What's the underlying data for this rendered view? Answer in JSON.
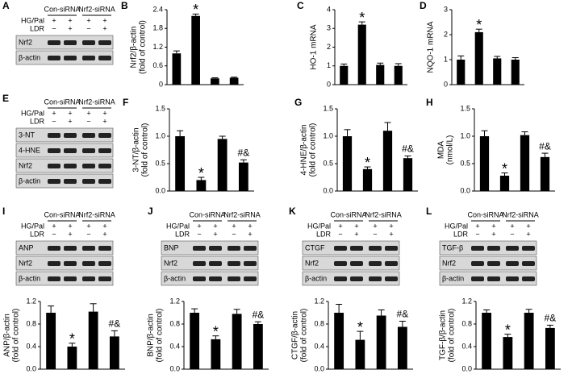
{
  "chart_data": [
    {
      "type": "bar",
      "panel": "B",
      "ylabel": [
        "Nrf2/β-actin",
        "(fold of control)"
      ],
      "values": [
        1.0,
        2.2,
        0.2,
        0.22
      ],
      "errors": [
        0.08,
        0.06,
        0.02,
        0.02
      ],
      "annotations": [
        null,
        "*",
        null,
        null
      ],
      "color": "#000000",
      "ylim": [
        0,
        2.4
      ],
      "yticks": [
        0,
        0.6,
        1.2,
        1.8,
        2.4
      ]
    },
    {
      "type": "bar",
      "panel": "C",
      "ylabel": [
        "HO-1 mRNA"
      ],
      "values": [
        1.0,
        3.2,
        1.05,
        1.0
      ],
      "errors": [
        0.1,
        0.15,
        0.1,
        0.12
      ],
      "annotations": [
        null,
        "*",
        null,
        null
      ],
      "color": "#000000",
      "ylim": [
        0,
        4
      ],
      "yticks": [
        0,
        1,
        2,
        3,
        4
      ]
    },
    {
      "type": "bar",
      "panel": "D",
      "ylabel": [
        "NQO-1 mRNA"
      ],
      "values": [
        1.0,
        2.1,
        1.05,
        1.0
      ],
      "errors": [
        0.15,
        0.12,
        0.08,
        0.08
      ],
      "annotations": [
        null,
        "*",
        null,
        null
      ],
      "color": "#000000",
      "ylim": [
        0,
        3
      ],
      "yticks": [
        0,
        1,
        2,
        3
      ]
    },
    {
      "type": "bar",
      "panel": "F",
      "ylabel": [
        "3-NT/β-actin",
        "(fold of control)"
      ],
      "values": [
        1.0,
        0.2,
        0.95,
        0.52
      ],
      "errors": [
        0.1,
        0.05,
        0.05,
        0.05
      ],
      "annotations": [
        null,
        "*",
        null,
        "#&"
      ],
      "color": "#000000",
      "ylim": [
        0,
        1.5
      ],
      "yticks": [
        {
          "value": 0,
          "label": "0.0"
        },
        0.5,
        {
          "value": 1,
          "label": "1.0"
        },
        1.5
      ]
    },
    {
      "type": "bar",
      "panel": "G",
      "ylabel": [
        "4-HNE/β-actin",
        "(fold of control)"
      ],
      "values": [
        1.0,
        0.4,
        1.1,
        0.6
      ],
      "errors": [
        0.12,
        0.04,
        0.15,
        0.04
      ],
      "annotations": [
        null,
        "*",
        null,
        "#&"
      ],
      "color": "#000000",
      "ylim": [
        0,
        1.5
      ],
      "yticks": [
        {
          "value": 0,
          "label": "0.0"
        },
        0.5,
        {
          "value": 1,
          "label": "1.0"
        },
        1.5
      ]
    },
    {
      "type": "bar",
      "panel": "H",
      "ylabel": [
        "MDA",
        "(nmol/L)"
      ],
      "values": [
        1.0,
        0.28,
        1.02,
        0.62
      ],
      "errors": [
        0.1,
        0.05,
        0.06,
        0.07
      ],
      "annotations": [
        null,
        "*",
        null,
        "#&"
      ],
      "color": "#000000",
      "ylim": [
        0,
        1.5
      ],
      "yticks": [
        {
          "value": 0,
          "label": "0.0"
        },
        0.5,
        {
          "value": 1,
          "label": "1.0"
        },
        1.5
      ]
    },
    {
      "type": "bar",
      "ylabel": [
        "ANP/β-actin",
        "(fold of control)"
      ],
      "values": [
        1.0,
        0.4,
        1.02,
        0.58
      ],
      "errors": [
        0.12,
        0.06,
        0.14,
        0.1
      ],
      "annotations": [
        null,
        "*",
        null,
        "#&"
      ],
      "color": "#000000",
      "ylim": [
        0,
        1.2
      ],
      "yticks": [
        {
          "value": 0,
          "label": "0.0"
        },
        0.4,
        0.8,
        1.2
      ]
    },
    {
      "type": "bar",
      "ylabel": [
        "BNP/β-actin",
        "(fold of control)"
      ],
      "values": [
        1.0,
        0.53,
        0.98,
        0.8
      ],
      "errors": [
        0.07,
        0.06,
        0.08,
        0.04
      ],
      "annotations": [
        null,
        "*",
        null,
        "#&"
      ],
      "color": "#000000",
      "ylim": [
        0,
        1.2
      ],
      "yticks": [
        {
          "value": 0,
          "label": "0.0"
        },
        0.4,
        0.8,
        1.2
      ]
    },
    {
      "type": "bar",
      "ylabel": [
        "CTGF/β-actin",
        "(fold of control)"
      ],
      "values": [
        1.0,
        0.52,
        0.95,
        0.75
      ],
      "errors": [
        0.15,
        0.15,
        0.1,
        0.1
      ],
      "annotations": [
        null,
        "*",
        null,
        "#&"
      ],
      "color": "#000000",
      "ylim": [
        0,
        1.2
      ],
      "yticks": [
        {
          "value": 0,
          "label": "0.0"
        },
        0.4,
        0.8,
        1.2
      ]
    },
    {
      "type": "bar",
      "ylabel": [
        "TGF-β/β-actin",
        "(fold of control)"
      ],
      "values": [
        1.0,
        0.57,
        1.0,
        0.73
      ],
      "errors": [
        0.05,
        0.05,
        0.06,
        0.05
      ],
      "annotations": [
        null,
        "*",
        null,
        "#&"
      ],
      "color": "#000000",
      "ylim": [
        0,
        1.2
      ],
      "yticks": [
        {
          "value": 0,
          "label": "0.0"
        },
        0.4,
        0.8,
        1.2
      ]
    }
  ],
  "blots": [
    {
      "panel": "A",
      "groups": [
        "Con-siRNA",
        "Nrf2-siRNA"
      ],
      "treatments": [
        {
          "name": "HG/Pal",
          "signs": [
            "+",
            "+",
            "+",
            "+"
          ]
        },
        {
          "name": "LDR",
          "signs": [
            "−",
            "+",
            "−",
            "+"
          ]
        }
      ],
      "bands": [
        "Nrf2",
        "β-actin"
      ]
    },
    {
      "panel": "E",
      "groups": [
        "Con-siRNA",
        "Nrf2-siRNA"
      ],
      "treatments": [
        {
          "name": "HG/Pal",
          "signs": [
            "+",
            "+",
            "+",
            "+"
          ]
        },
        {
          "name": "LDR",
          "signs": [
            "−",
            "+",
            "−",
            "+"
          ]
        }
      ],
      "bands": [
        "3-NT",
        "4-HNE",
        "Nrf2",
        "β-actin"
      ]
    },
    {
      "panel": "I",
      "groups": [
        "Con-siRNA",
        "Nrf2-siRNA"
      ],
      "treatments": [
        {
          "name": "HG/Pal",
          "signs": [
            "+",
            "+",
            "+",
            "+"
          ]
        },
        {
          "name": "LDR",
          "signs": [
            "−",
            "+",
            "−",
            "+"
          ]
        }
      ],
      "bands": [
        "ANP",
        "Nrf2",
        "β-actin"
      ]
    },
    {
      "panel": "J",
      "groups": [
        "Con-siRNA",
        "Nrf2-siRNA"
      ],
      "treatments": [
        {
          "name": "HG/Pal",
          "signs": [
            "+",
            "+",
            "+",
            "+"
          ]
        },
        {
          "name": "LDR",
          "signs": [
            "−",
            "+",
            "−",
            "+"
          ]
        }
      ],
      "bands": [
        "BNP",
        "Nrf2",
        "β-actin"
      ]
    },
    {
      "panel": "K",
      "groups": [
        "Con-siRNA",
        "Nrf2-siRNA"
      ],
      "treatments": [
        {
          "name": "HG/Pal",
          "signs": [
            "+",
            "+",
            "+",
            "+"
          ]
        },
        {
          "name": "LDR",
          "signs": [
            "−",
            "+",
            "−",
            "+"
          ]
        }
      ],
      "bands": [
        "CTGF",
        "Nrf2",
        "β-actin"
      ]
    },
    {
      "panel": "L",
      "groups": [
        "Con-siRNA",
        "Nrf2-siRNA"
      ],
      "treatments": [
        {
          "name": "HG/Pal",
          "signs": [
            "+",
            "+",
            "+",
            "+"
          ]
        },
        {
          "name": "LDR",
          "signs": [
            "−",
            "+",
            "−",
            "+"
          ]
        }
      ],
      "bands": [
        "TGF-β",
        "Nrf2",
        "β-actin"
      ]
    }
  ]
}
